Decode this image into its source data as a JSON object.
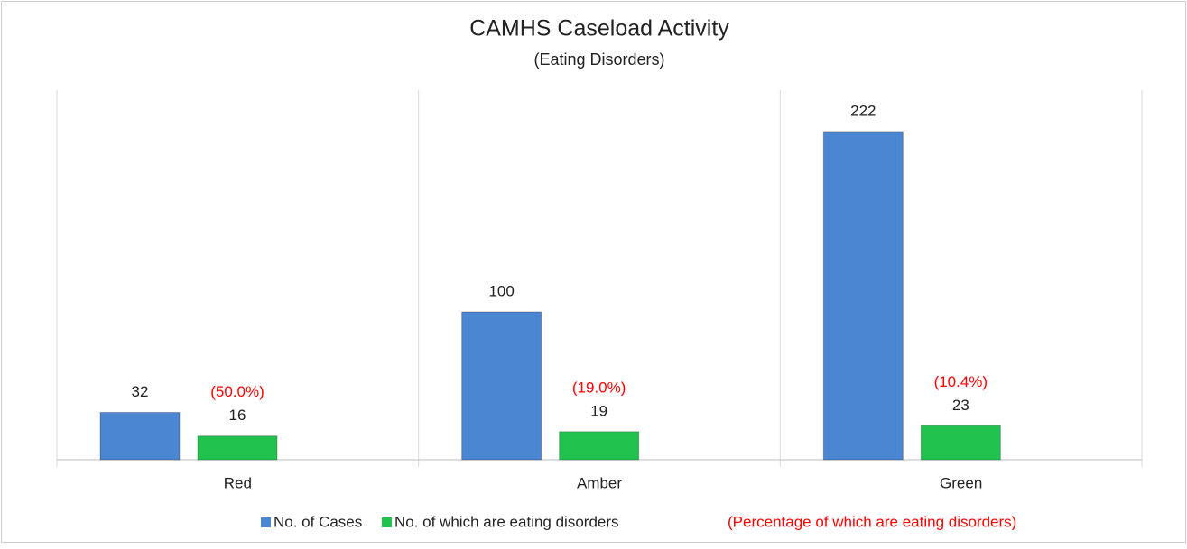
{
  "chart_data": {
    "type": "bar",
    "title": "CAMHS Caseload Activity",
    "subtitle": "(Eating Disorders)",
    "categories": [
      "Red",
      "Amber",
      "Green"
    ],
    "series": [
      {
        "name": "No. of Cases",
        "color": "#4a86d2",
        "values": [
          32,
          100,
          222
        ]
      },
      {
        "name": "No. of which are eating disorders",
        "color": "#22c24f",
        "values": [
          16,
          19,
          23
        ],
        "annotations": [
          "(50.0%)",
          "(19.0%)",
          "(10.4%)"
        ]
      }
    ],
    "annotation_legend": "(Percentage of which are eating disorders)",
    "annotation_color": "#ff0000",
    "ylim": [
      0,
      250
    ],
    "legend": "bottom"
  }
}
